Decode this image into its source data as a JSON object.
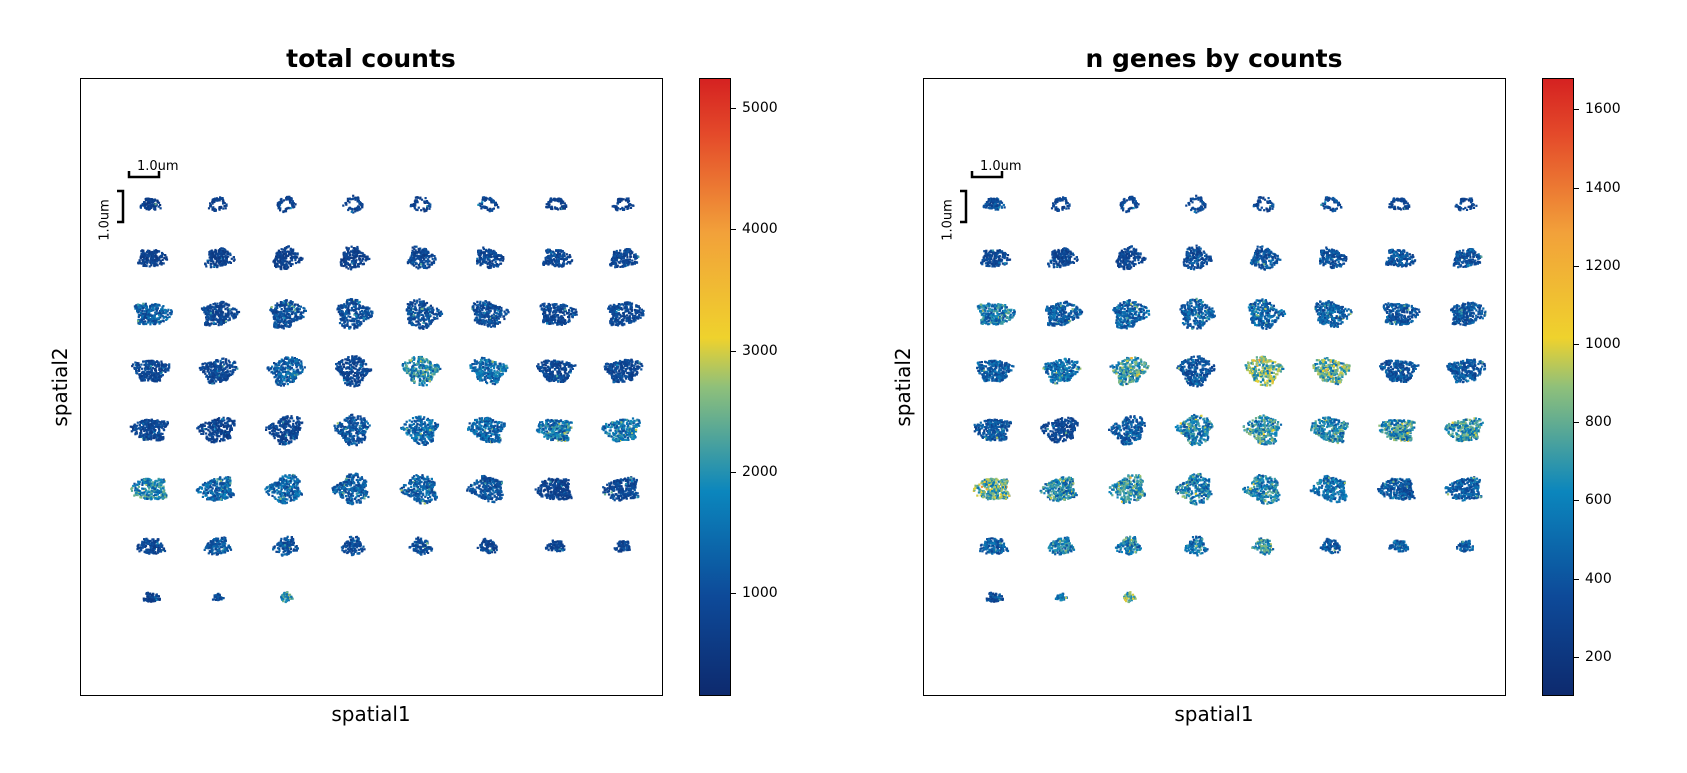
{
  "chart_data": [
    {
      "type": "scatter",
      "title": "total counts",
      "xlabel": "spatial1",
      "ylabel": "spatial2",
      "colorbar": {
        "range": [
          150,
          5250
        ],
        "ticks": [
          1000,
          2000,
          3000,
          4000,
          5000
        ],
        "colormap": [
          "#0d2a6e",
          "#0d4a99",
          "#0b86bd",
          "#8fc07a",
          "#efd22d",
          "#f2a13a",
          "#e44a2a",
          "#d52221"
        ]
      },
      "scalebar": {
        "label": "1.0um"
      },
      "sections": {
        "grid_rows": [
          8,
          8,
          8,
          8,
          8,
          8,
          8,
          3
        ],
        "mean_color_level": [
          [
            0.1,
            0.1,
            0.1,
            0.1,
            0.1,
            0.12,
            0.1,
            0.1
          ],
          [
            0.1,
            0.1,
            0.1,
            0.1,
            0.12,
            0.12,
            0.12,
            0.12
          ],
          [
            0.18,
            0.12,
            0.15,
            0.14,
            0.14,
            0.14,
            0.12,
            0.12
          ],
          [
            0.12,
            0.12,
            0.18,
            0.12,
            0.28,
            0.22,
            0.12,
            0.12
          ],
          [
            0.12,
            0.1,
            0.12,
            0.16,
            0.2,
            0.2,
            0.24,
            0.24
          ],
          [
            0.28,
            0.2,
            0.2,
            0.18,
            0.18,
            0.15,
            0.1,
            0.12
          ],
          [
            0.12,
            0.16,
            0.16,
            0.14,
            0.14,
            0.12,
            0.12,
            0.12
          ],
          [
            0.1,
            0.14,
            0.3
          ]
        ]
      }
    },
    {
      "type": "scatter",
      "title": "n genes by counts",
      "xlabel": "spatial1",
      "ylabel": "spatial2",
      "colorbar": {
        "range": [
          100,
          1680
        ],
        "ticks": [
          200,
          400,
          600,
          800,
          1000,
          1200,
          1400,
          1600
        ],
        "colormap": [
          "#0d2a6e",
          "#0d4a99",
          "#0b86bd",
          "#8fc07a",
          "#efd22d",
          "#f2a13a",
          "#e44a2a",
          "#d52221"
        ]
      },
      "scalebar": {
        "label": "1.0um"
      },
      "sections": {
        "grid_rows": [
          8,
          8,
          8,
          8,
          8,
          8,
          8,
          3
        ],
        "mean_color_level": [
          [
            0.15,
            0.12,
            0.12,
            0.12,
            0.12,
            0.14,
            0.12,
            0.12
          ],
          [
            0.12,
            0.12,
            0.12,
            0.14,
            0.15,
            0.15,
            0.15,
            0.15
          ],
          [
            0.25,
            0.18,
            0.2,
            0.18,
            0.2,
            0.18,
            0.16,
            0.16
          ],
          [
            0.18,
            0.22,
            0.3,
            0.15,
            0.4,
            0.36,
            0.16,
            0.16
          ],
          [
            0.16,
            0.12,
            0.18,
            0.26,
            0.3,
            0.28,
            0.3,
            0.3
          ],
          [
            0.38,
            0.28,
            0.3,
            0.26,
            0.26,
            0.22,
            0.16,
            0.18
          ],
          [
            0.18,
            0.26,
            0.26,
            0.22,
            0.3,
            0.18,
            0.18,
            0.18
          ],
          [
            0.14,
            0.22,
            0.4
          ]
        ]
      }
    }
  ]
}
